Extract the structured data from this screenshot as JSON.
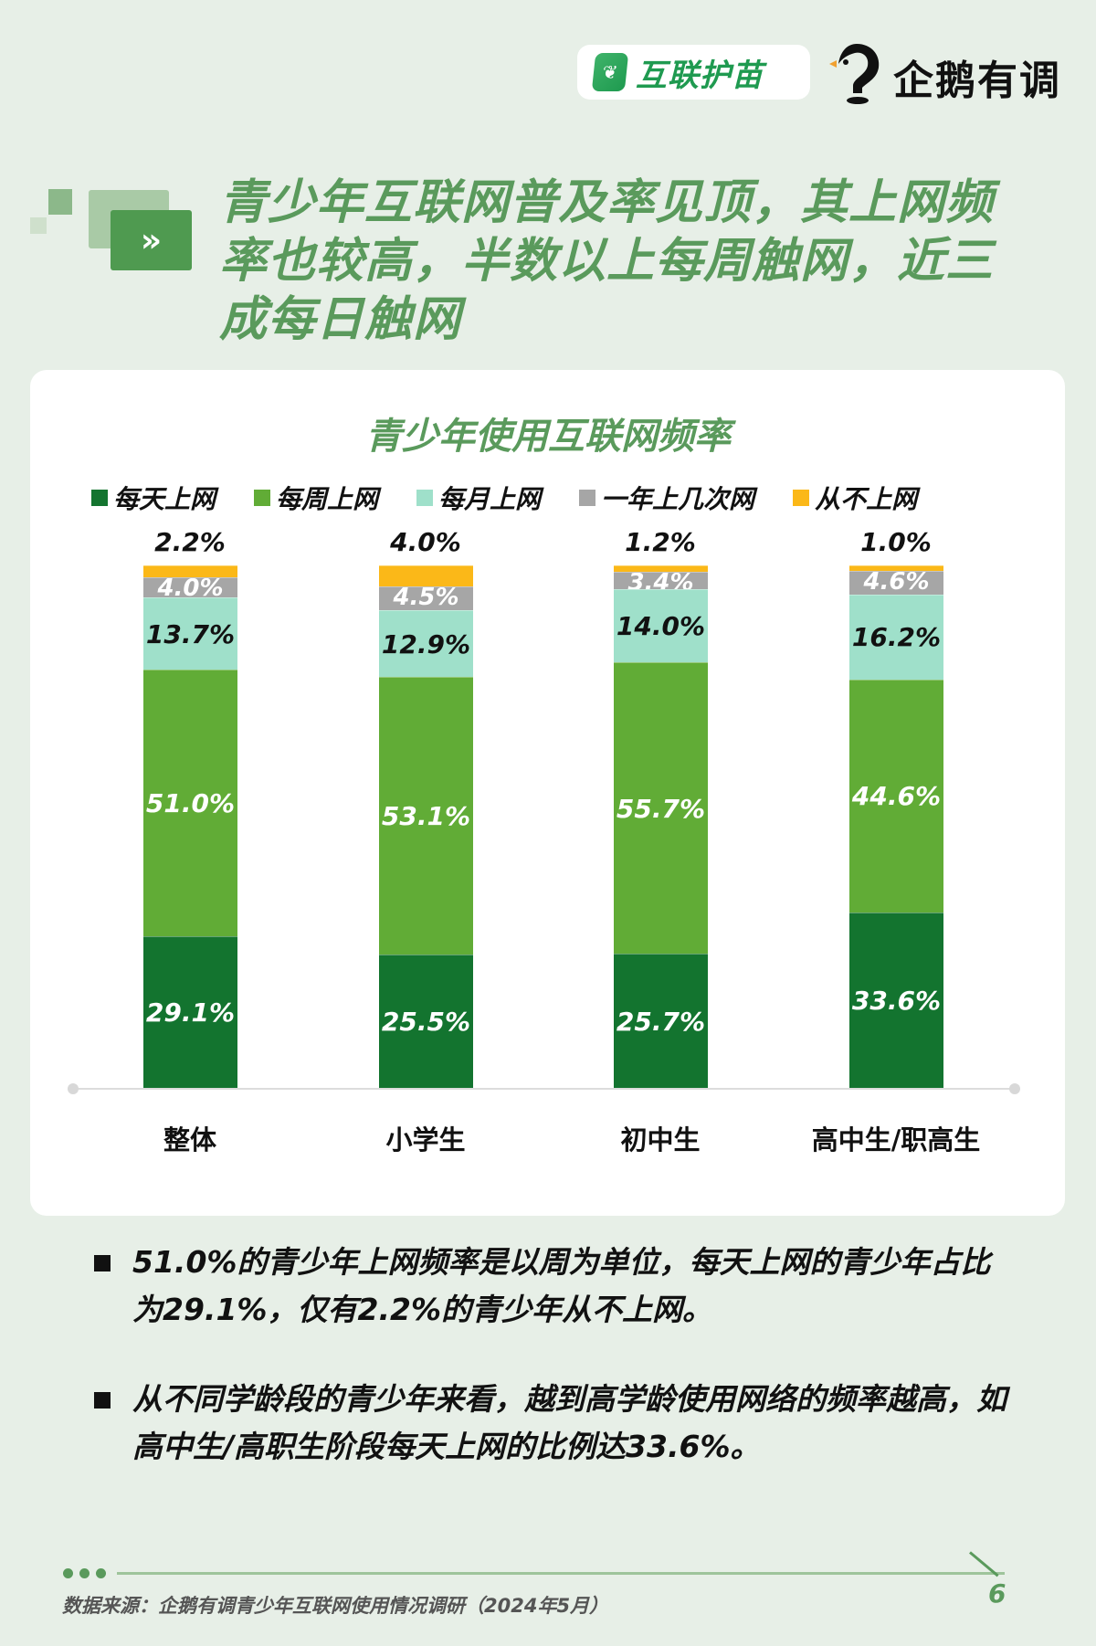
{
  "header": {
    "brand_name": "互联护苗",
    "brand_icon": "leaf-icon",
    "partner_name": "企鹅有调",
    "partner_icon": "penguin-icon"
  },
  "title": {
    "icon": "double-chevron-right-icon",
    "text": "青少年互联网普及率见顶，其上网频率也较高，半数以上每周触网，近三成每日触网"
  },
  "chart_data": {
    "type": "bar",
    "stacked": true,
    "title": "青少年使用互联网频率",
    "xlabel": "",
    "ylabel": "",
    "ylim": [
      0,
      100
    ],
    "legend_position": "top",
    "grid": false,
    "categories": [
      "整体",
      "小学生",
      "初中生",
      "高中生/职高生"
    ],
    "series": [
      {
        "name": "每天上网",
        "color": "#13742f",
        "values": [
          29.1,
          25.5,
          25.7,
          33.6
        ],
        "labels": [
          "29.1%",
          "25.5%",
          "25.7%",
          "33.6%"
        ]
      },
      {
        "name": "每周上网",
        "color": "#61ac36",
        "values": [
          51.0,
          53.1,
          55.7,
          44.6
        ],
        "labels": [
          "51.0%",
          "53.1%",
          "55.7%",
          "44.6%"
        ]
      },
      {
        "name": "每月上网",
        "color": "#9fe0ca",
        "values": [
          13.7,
          12.9,
          14.0,
          16.2
        ],
        "labels": [
          "13.7%",
          "12.9%",
          "14.0%",
          "16.2%"
        ]
      },
      {
        "name": "一年上几次网",
        "color": "#a6a6a6",
        "values": [
          4.0,
          4.5,
          3.4,
          4.6
        ],
        "labels": [
          "4.0%",
          "4.5%",
          "3.4%",
          "4.6%"
        ]
      },
      {
        "name": "从不上网",
        "color": "#fbb818",
        "values": [
          2.2,
          4.0,
          1.2,
          1.0
        ],
        "labels": [
          "2.2%",
          "4.0%",
          "1.2%",
          "1.0%"
        ]
      }
    ]
  },
  "bullets": [
    "51.0%的青少年上网频率是以周为单位，每天上网的青少年占比为29.1%，仅有2.2%的青少年从不上网。",
    "从不同学龄段的青少年来看，越到高学龄使用网络的频率越高，如高中生/高职生阶段每天上网的比例达33.6%。"
  ],
  "footer": {
    "source": "数据来源：企鹅有调青少年互联网使用情况调研（2024年5月）",
    "page_number": "6"
  }
}
